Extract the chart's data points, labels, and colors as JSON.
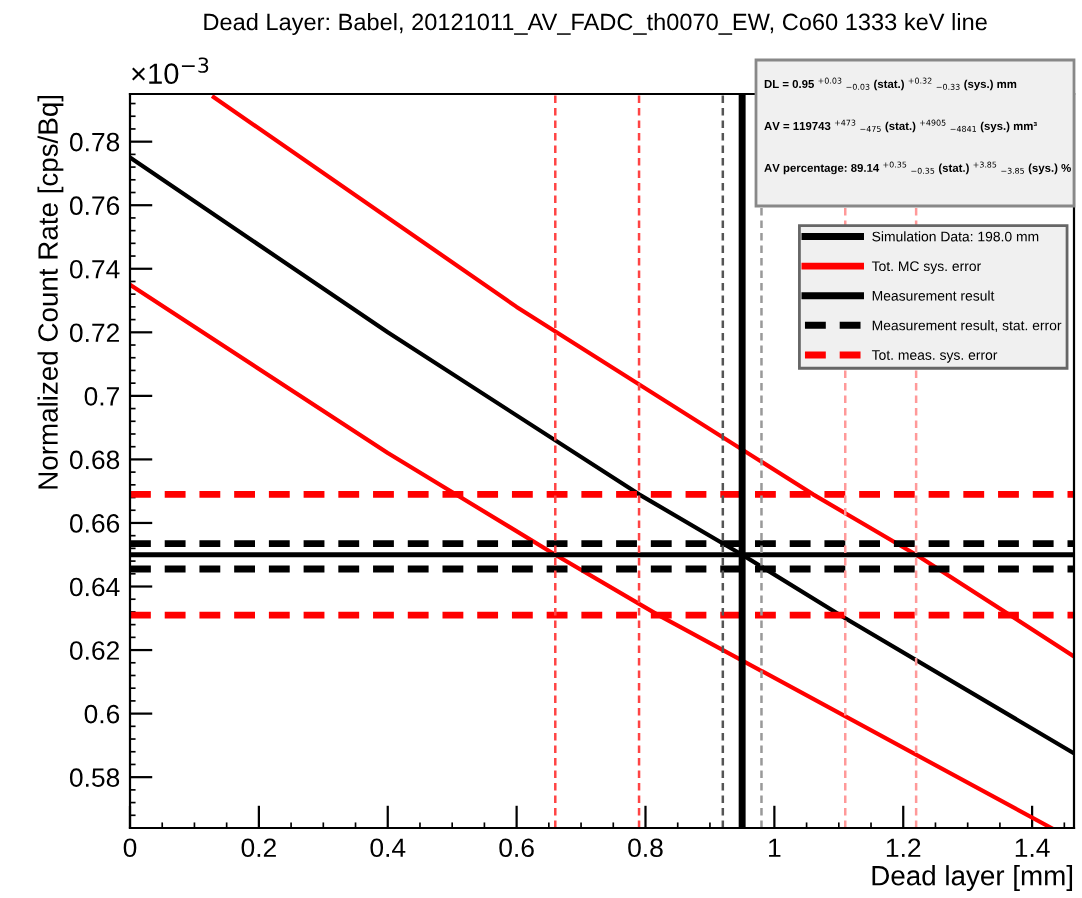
{
  "chart_data": {
    "type": "line",
    "title": "Dead Layer: Babel, 20121011_AV_FADC_th0070_EW, Co60 1333 keV line",
    "xlabel": "Dead layer [mm]",
    "ylabel": "Normalized Count Rate [cps/Bq]",
    "annotations": [
      "×10$^{−3}$",
      "DL = 0.95 $^{+0.03}$ $_{−0.03}$ (stat.) $^{+0.32}$ $_{−0.33}$ (sys.) mm",
      "AV = 119743 $^{+473}$ $_{−475}$ (stat.) $^{+4905}$ $_{−4841}$ (sys.) mm³",
      "AV percentage: 89.14 $^{+0.35}$ $_{−0.35}$ (stat.) $^{+3.85}$ $_{−3.85}$ (sys.) %"
    ],
    "series": [
      {
        "name": "Simulation Data: 198.0 mm",
        "color": "#000000",
        "x": [
          0,
          0.4,
          0.79,
          0.95,
          1.11,
          1.465
        ],
        "values": [
          0.775,
          0.72,
          0.669,
          0.65,
          0.63,
          0.5875
        ]
      },
      {
        "name": "Tot. MC sys. error",
        "color": "#ff0000",
        "x": [
          0.13,
          0.6,
          1.06,
          1.22,
          1.465
        ],
        "values": [
          0.794,
          0.728,
          0.669,
          0.65,
          0.618
        ]
      },
      {
        "color": "#ff0000",
        "x": [
          0,
          0.4,
          0.66,
          0.82,
          1.43
        ],
        "values": [
          0.735,
          0.682,
          0.65,
          0.631,
          0.564
        ]
      }
    ],
    "ref_lines": [
      {
        "axis": "y",
        "value": 0.65,
        "label": "Measurement result",
        "color": "#000000",
        "line_style": "solid"
      },
      {
        "axis": "y",
        "value": 0.6535,
        "label": "Measurement result, stat. error",
        "color": "#000000",
        "line_style": "dashed"
      },
      {
        "axis": "y",
        "value": 0.6455,
        "color": "#000000",
        "line_style": "dashed"
      },
      {
        "axis": "y",
        "value": 0.669,
        "label": "Tot. meas. sys. error",
        "color": "#ff0000",
        "line_style": "dashed"
      },
      {
        "axis": "y",
        "value": 0.631,
        "color": "#ff0000",
        "line_style": "dashed"
      },
      {
        "axis": "x",
        "value": 0.95,
        "color": "#000000",
        "line_style": "solid"
      },
      {
        "axis": "x",
        "value": 0.92,
        "color": "#555555",
        "line_style": "dashed"
      },
      {
        "axis": "x",
        "value": 0.98,
        "color": "#999999",
        "line_style": "dashed"
      },
      {
        "axis": "x",
        "value": 0.66,
        "color": "#ff4444",
        "line_style": "dashed"
      },
      {
        "axis": "x",
        "value": 0.79,
        "color": "#ff4444",
        "line_style": "dashed"
      },
      {
        "axis": "x",
        "value": 1.11,
        "color": "#ff9999",
        "line_style": "dashed"
      },
      {
        "axis": "x",
        "value": 1.22,
        "color": "#ff9999",
        "line_style": "dashed"
      }
    ],
    "xlim": [
      0,
      1.465
    ],
    "ylim": [
      0.564,
      0.795
    ],
    "xticks": [
      0,
      0.2,
      0.4,
      0.6,
      0.8,
      1,
      1.2,
      1.4
    ],
    "yticks": [
      0.58,
      0.6,
      0.62,
      0.64,
      0.66,
      0.68,
      0.7,
      0.72,
      0.74,
      0.76,
      0.78
    ],
    "grid": false,
    "legend": "top right",
    "marker": "none",
    "line_style": "solid"
  }
}
